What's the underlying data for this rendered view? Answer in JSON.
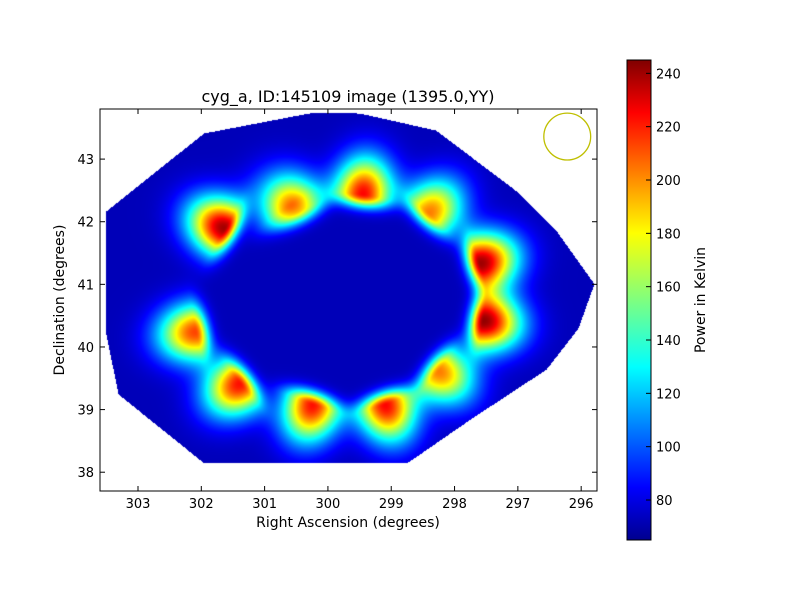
{
  "chart_data": {
    "type": "heatmap",
    "title": "cyg_a, ID:145109 image (1395.0,YY)",
    "xlabel": "Right Ascension (degrees)",
    "ylabel": "Declination (degrees)",
    "xlim": [
      303.6,
      295.75
    ],
    "ylim": [
      37.7,
      43.8
    ],
    "x_ticks": [
      303,
      302,
      301,
      300,
      299,
      298,
      297,
      296
    ],
    "y_ticks": [
      38,
      39,
      40,
      41,
      42,
      43
    ],
    "grid": false,
    "colormap": "jet",
    "colorbar": {
      "label": "Power in Kelvin",
      "range": [
        65,
        245
      ],
      "ticks": [
        80,
        100,
        120,
        140,
        160,
        180,
        200,
        220,
        240
      ]
    },
    "background_level": 75,
    "footprint_polygon_radec": [
      [
        301.95,
        43.4
      ],
      [
        300.25,
        43.73
      ],
      [
        299.5,
        43.72
      ],
      [
        298.3,
        43.45
      ],
      [
        297.05,
        42.5
      ],
      [
        296.4,
        41.85
      ],
      [
        295.8,
        41.0
      ],
      [
        296.05,
        40.3
      ],
      [
        296.55,
        39.65
      ],
      [
        297.75,
        38.85
      ],
      [
        298.75,
        38.15
      ],
      [
        301.95,
        38.15
      ],
      [
        303.3,
        39.25
      ],
      [
        303.5,
        40.25
      ],
      [
        303.5,
        42.15
      ]
    ],
    "hotspots": [
      {
        "ra": 301.65,
        "dec": 41.9,
        "peak": 238
      },
      {
        "ra": 300.75,
        "dec": 42.2,
        "peak": 120
      },
      {
        "ra": 300.45,
        "dec": 42.2,
        "peak": 175
      },
      {
        "ra": 299.45,
        "dec": 42.45,
        "peak": 222
      },
      {
        "ra": 298.4,
        "dec": 42.15,
        "peak": 200
      },
      {
        "ra": 297.6,
        "dec": 41.35,
        "peak": 238
      },
      {
        "ra": 297.55,
        "dec": 40.42,
        "peak": 240
      },
      {
        "ra": 298.25,
        "dec": 39.62,
        "peak": 200
      },
      {
        "ra": 299.1,
        "dec": 39.08,
        "peak": 222
      },
      {
        "ra": 300.25,
        "dec": 39.08,
        "peak": 220
      },
      {
        "ra": 301.4,
        "dec": 39.42,
        "peak": 220
      },
      {
        "ra": 302.1,
        "dec": 40.25,
        "peak": 210
      }
    ],
    "beam_marker": {
      "ra": 296.22,
      "dec": 43.36,
      "color": "#bfbf00"
    }
  }
}
